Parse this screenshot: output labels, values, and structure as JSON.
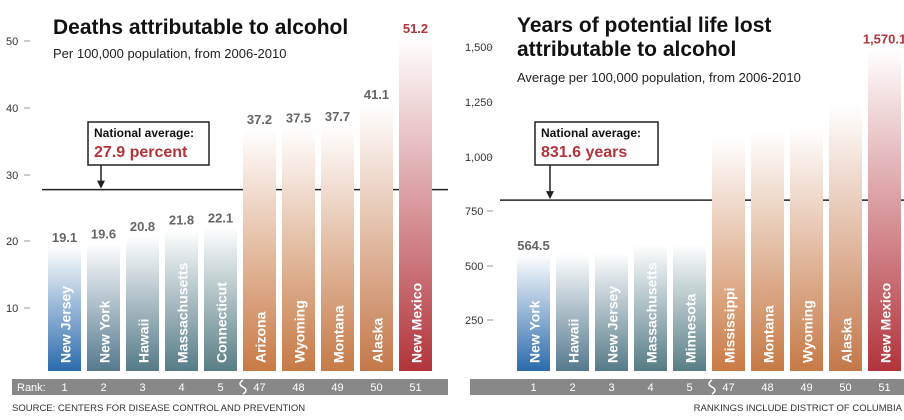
{
  "chart_data": [
    {
      "type": "bar",
      "title": "Deaths attributable to alcohol",
      "subtitle": "Per 100,000 population, from 2006-2010",
      "xlabel": "Rank:",
      "ylabel": "",
      "ylim": [
        0,
        52
      ],
      "yticks": [
        "10",
        "20",
        "30",
        "40",
        "50"
      ],
      "grid": false,
      "categories": [
        "New Jersey",
        "New York",
        "Hawaii",
        "Massachusetts",
        "Connecticut",
        "Arizona",
        "Wyoming",
        "Montana",
        "Alaska",
        "New Mexico"
      ],
      "ranks": [
        "1",
        "2",
        "3",
        "4",
        "5",
        "47",
        "48",
        "49",
        "50",
        "51"
      ],
      "values": [
        19.1,
        19.6,
        20.8,
        21.8,
        22.1,
        37.2,
        37.5,
        37.7,
        41.1,
        51.2
      ],
      "value_labels": [
        "19.1",
        "19.6",
        "20.8",
        "21.8",
        "22.1",
        "37.2",
        "37.5",
        "37.7",
        "41.1",
        "51.2"
      ],
      "reference_line": {
        "value": 27.9,
        "label_title": "National average:",
        "label_value": "27.9 percent"
      }
    },
    {
      "type": "bar",
      "title": "Years of potential life lost attributable to alcohol",
      "title_lines": [
        "Years of potential life lost",
        "attributable to alcohol"
      ],
      "subtitle": "Average per 100,000 population, from 2006-2010",
      "xlabel": "",
      "ylabel": "",
      "ylim": [
        0,
        1650
      ],
      "yticks": [
        "250",
        "500",
        "750",
        "1,000",
        "1,250",
        "1,500"
      ],
      "grid": false,
      "categories": [
        "New York",
        "Hawaii",
        "New Jersey",
        "Massachusetts",
        "Minnesota",
        "Mississippi",
        "Montana",
        "Wyoming",
        "Alaska",
        "New Mexico"
      ],
      "ranks": [
        "1",
        "2",
        "3",
        "4",
        "5",
        "47",
        "48",
        "49",
        "50",
        "51"
      ],
      "values": [
        564.5,
        570,
        575,
        615,
        617,
        1133,
        1163,
        1183,
        1296,
        1570.1
      ],
      "value_labels": [
        "564.5",
        "",
        "",
        "",
        "",
        "",
        "",
        "",
        "",
        "1,570.1"
      ],
      "reference_line": {
        "value": 831.6,
        "label_title": "National average:",
        "label_value": "831.6 years"
      }
    }
  ],
  "footer": {
    "source": "SOURCE: CENTERS FOR DISEASE CONTROL AND PREVENTION",
    "note": "RANKINGS INCLUDE DISTRICT OF COLUMBIA"
  },
  "colors": {
    "low_ranks": [
      "#2b6bad",
      "#55798e",
      "#557a88",
      "#557c85",
      "#587e84"
    ],
    "high_ranks": [
      "#c97a45",
      "#c67a45",
      "#c67a47",
      "#c4784a",
      "#b2343c"
    ],
    "top_fade": "#ffffff",
    "accent_red": "#b2343c",
    "rank_bar": "#888888",
    "axis_text": "#333333",
    "reference_line": "#222222"
  }
}
